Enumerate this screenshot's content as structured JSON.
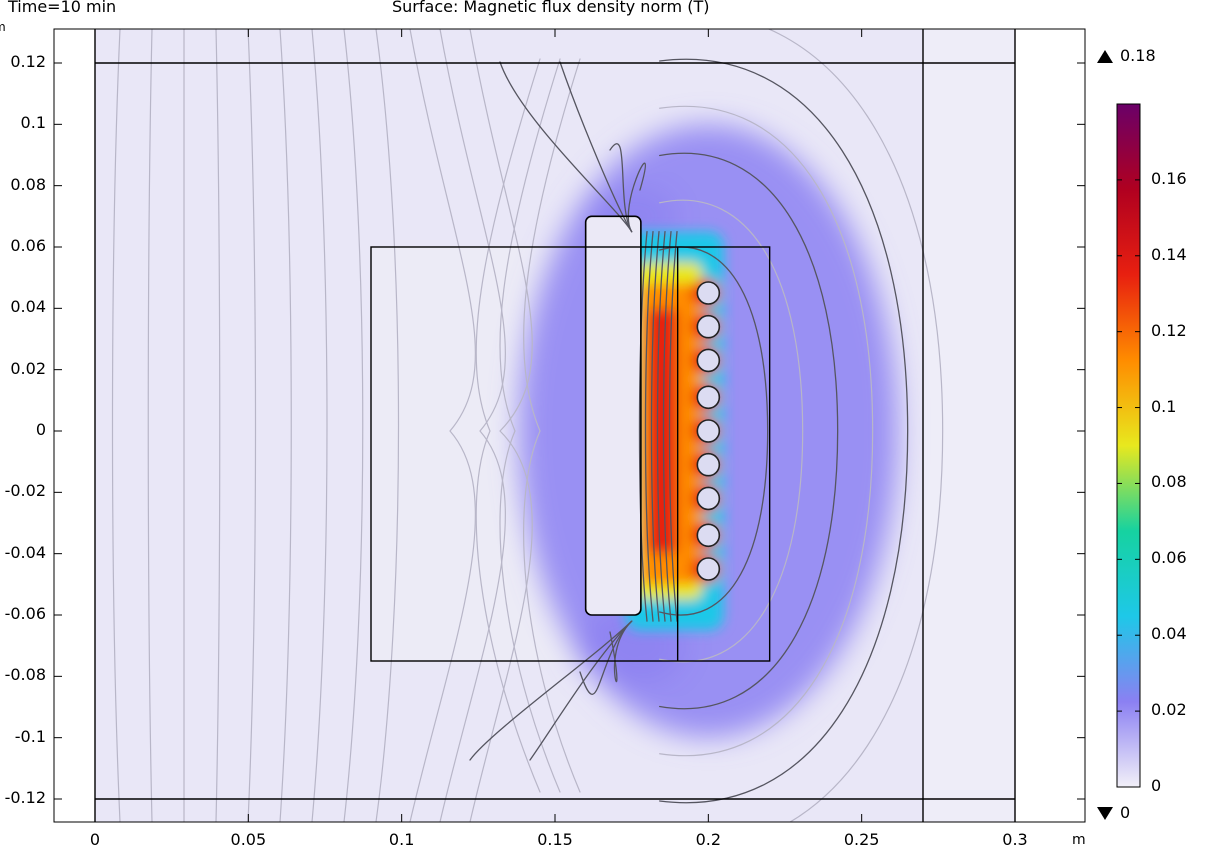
{
  "header": {
    "time_label": "Time=10 min",
    "plot_title": "Surface: Magnetic flux density norm (T)"
  },
  "chart_data": {
    "type": "heatmap",
    "quantity": "Magnetic flux density norm",
    "unit": "T",
    "x_unit_label": "m",
    "y_unit_label": "m",
    "xlim": [
      0,
      0.3
    ],
    "ylim": [
      -0.12,
      0.12
    ],
    "x_ticks": [
      "0",
      "0.05",
      "0.1",
      "0.15",
      "0.2",
      "0.25",
      "0.3"
    ],
    "x_tick_values": [
      0,
      0.05,
      0.1,
      0.15,
      0.2,
      0.25,
      0.3
    ],
    "y_ticks": [
      "0.12",
      "0.1",
      "0.08",
      "0.06",
      "0.04",
      "0.02",
      "0",
      "-0.02",
      "-0.04",
      "-0.06",
      "-0.08",
      "-0.1",
      "-0.12"
    ],
    "y_tick_values": [
      0.12,
      0.1,
      0.08,
      0.06,
      0.04,
      0.02,
      0,
      -0.02,
      -0.04,
      -0.06,
      -0.08,
      -0.1,
      -0.12
    ],
    "colorbar": {
      "max_label": "0.18",
      "min_label": "0",
      "max_value": 0.18,
      "min_value": 0,
      "range": [
        0,
        0.18
      ],
      "ticks": [
        "0.16",
        "0.14",
        "0.12",
        "0.1",
        "0.08",
        "0.06",
        "0.04",
        "0.02",
        "0"
      ],
      "tick_values": [
        0.16,
        0.14,
        0.12,
        0.1,
        0.08,
        0.06,
        0.04,
        0.02,
        0
      ],
      "colors": [
        "#f2f0f8",
        "#8b80f2",
        "#1ec8e8",
        "#16d2a0",
        "#e8e81e",
        "#ff8c00",
        "#e82010",
        "#b00020",
        "#6a0068"
      ]
    },
    "domains": [
      {
        "name": "outer-region",
        "x": [
          0,
          0.3
        ],
        "y": [
          -0.12,
          0.12
        ]
      },
      {
        "name": "workpiece",
        "x": [
          0.09,
          0.22
        ],
        "y": [
          -0.075,
          0.06
        ]
      },
      {
        "name": "yoke",
        "x": [
          0.16,
          0.18
        ],
        "y": [
          -0.06,
          0.07
        ]
      },
      {
        "name": "coil-region",
        "x": [
          0.18,
          0.22
        ],
        "y": [
          -0.075,
          0.06
        ]
      },
      {
        "name": "boundary-line-right",
        "x": [
          0.27,
          0.27
        ],
        "y": [
          -0.12,
          0.12
        ]
      }
    ],
    "coil_turns_y": [
      0.045,
      0.034,
      0.023,
      0.011,
      0.0,
      -0.011,
      -0.022,
      -0.034,
      -0.045
    ],
    "coil_turns_x": 0.2,
    "hotspot": {
      "x": 0.185,
      "y": 0.0,
      "value": 0.13
    }
  }
}
